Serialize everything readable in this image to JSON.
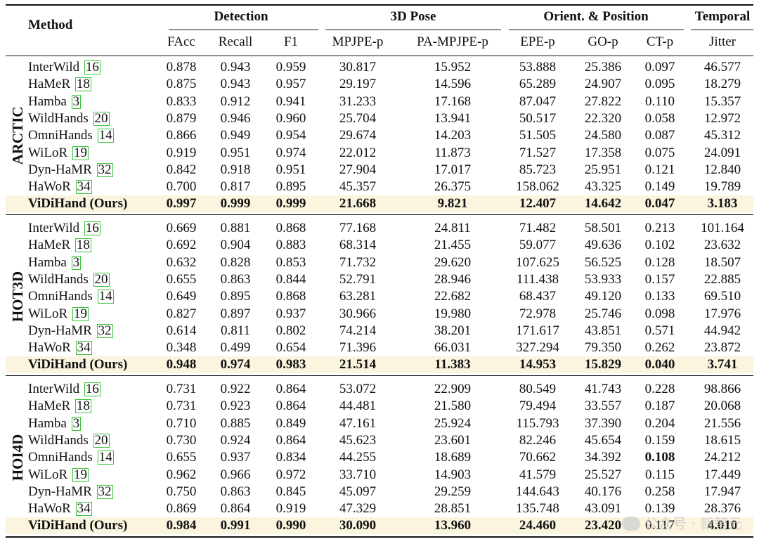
{
  "header": {
    "method_label": "Method",
    "groups": [
      {
        "label": "Detection",
        "span": [
          0,
          2
        ]
      },
      {
        "label": "3D Pose",
        "span": [
          3,
          4
        ]
      },
      {
        "label": "Orient. & Position",
        "span": [
          5,
          7
        ]
      },
      {
        "label": "Temporal",
        "span": [
          8,
          8
        ]
      }
    ],
    "columns": [
      "FAcc",
      "Recall",
      "F1",
      "MPJPE-p",
      "PA-MPJPE-p",
      "EPE-p",
      "GO-p",
      "CT-p",
      "Jitter"
    ]
  },
  "sections": [
    {
      "dataset": "ARCTIC",
      "rows": [
        {
          "method": "InterWild",
          "cite": "16",
          "values": [
            "0.878",
            "0.943",
            "0.959",
            "30.817",
            "15.952",
            "53.888",
            "25.386",
            "0.097",
            "46.577"
          ]
        },
        {
          "method": "HaMeR",
          "cite": "18",
          "values": [
            "0.875",
            "0.943",
            "0.957",
            "29.197",
            "14.596",
            "65.289",
            "24.907",
            "0.095",
            "18.279"
          ]
        },
        {
          "method": "Hamba",
          "cite": "3",
          "values": [
            "0.833",
            "0.912",
            "0.941",
            "31.233",
            "17.168",
            "87.047",
            "27.822",
            "0.110",
            "15.357"
          ]
        },
        {
          "method": "WildHands",
          "cite": "20",
          "values": [
            "0.879",
            "0.946",
            "0.960",
            "25.704",
            "13.941",
            "50.517",
            "22.320",
            "0.058",
            "12.972"
          ]
        },
        {
          "method": "OmniHands",
          "cite": "14",
          "values": [
            "0.866",
            "0.949",
            "0.954",
            "29.674",
            "14.203",
            "51.505",
            "24.580",
            "0.087",
            "45.312"
          ]
        },
        {
          "method": "WiLoR",
          "cite": "19",
          "values": [
            "0.919",
            "0.951",
            "0.974",
            "22.012",
            "11.873",
            "71.527",
            "17.358",
            "0.075",
            "24.091"
          ]
        },
        {
          "method": "Dyn-HaMR",
          "cite": "32",
          "values": [
            "0.842",
            "0.918",
            "0.951",
            "27.904",
            "17.017",
            "85.723",
            "25.951",
            "0.121",
            "12.840"
          ]
        },
        {
          "method": "HaWoR",
          "cite": "34",
          "values": [
            "0.700",
            "0.817",
            "0.895",
            "45.357",
            "26.375",
            "158.062",
            "43.325",
            "0.149",
            "19.789"
          ]
        },
        {
          "method": "ViDiHand (Ours)",
          "cite": "",
          "ours": true,
          "values": [
            "0.997",
            "0.999",
            "0.999",
            "21.668",
            "9.821",
            "12.407",
            "14.642",
            "0.047",
            "3.183"
          ]
        }
      ]
    },
    {
      "dataset": "HOT3D",
      "rows": [
        {
          "method": "InterWild",
          "cite": "16",
          "values": [
            "0.669",
            "0.881",
            "0.868",
            "77.168",
            "24.811",
            "71.482",
            "58.501",
            "0.213",
            "101.164"
          ]
        },
        {
          "method": "HaMeR",
          "cite": "18",
          "values": [
            "0.692",
            "0.904",
            "0.883",
            "68.314",
            "21.455",
            "59.077",
            "49.636",
            "0.102",
            "23.632"
          ]
        },
        {
          "method": "Hamba",
          "cite": "3",
          "values": [
            "0.632",
            "0.828",
            "0.853",
            "71.732",
            "29.620",
            "107.625",
            "56.525",
            "0.128",
            "18.507"
          ]
        },
        {
          "method": "WildHands",
          "cite": "20",
          "values": [
            "0.655",
            "0.863",
            "0.844",
            "52.791",
            "28.946",
            "111.438",
            "53.933",
            "0.157",
            "22.885"
          ]
        },
        {
          "method": "OmniHands",
          "cite": "14",
          "values": [
            "0.649",
            "0.895",
            "0.868",
            "63.281",
            "22.682",
            "68.437",
            "49.120",
            "0.133",
            "69.510"
          ]
        },
        {
          "method": "WiLoR",
          "cite": "19",
          "values": [
            "0.827",
            "0.897",
            "0.937",
            "30.966",
            "19.980",
            "72.978",
            "25.746",
            "0.098",
            "17.976"
          ]
        },
        {
          "method": "Dyn-HaMR",
          "cite": "32",
          "values": [
            "0.614",
            "0.811",
            "0.802",
            "74.214",
            "38.201",
            "171.617",
            "43.851",
            "0.571",
            "44.942"
          ]
        },
        {
          "method": "HaWoR",
          "cite": "34",
          "values": [
            "0.348",
            "0.499",
            "0.654",
            "71.396",
            "66.031",
            "327.294",
            "79.350",
            "0.262",
            "23.872"
          ]
        },
        {
          "method": "ViDiHand (Ours)",
          "cite": "",
          "ours": true,
          "values": [
            "0.948",
            "0.974",
            "0.983",
            "21.514",
            "11.383",
            "14.953",
            "15.829",
            "0.040",
            "3.741"
          ]
        }
      ]
    },
    {
      "dataset": "HOI4D",
      "rows": [
        {
          "method": "InterWild",
          "cite": "16",
          "values": [
            "0.731",
            "0.922",
            "0.864",
            "53.072",
            "22.909",
            "80.549",
            "41.743",
            "0.228",
            "98.866"
          ]
        },
        {
          "method": "HaMeR",
          "cite": "18",
          "values": [
            "0.731",
            "0.923",
            "0.864",
            "44.481",
            "21.580",
            "79.494",
            "33.557",
            "0.187",
            "20.068"
          ]
        },
        {
          "method": "Hamba",
          "cite": "3",
          "values": [
            "0.710",
            "0.885",
            "0.849",
            "47.161",
            "25.924",
            "115.793",
            "37.390",
            "0.204",
            "21.556"
          ]
        },
        {
          "method": "WildHands",
          "cite": "20",
          "values": [
            "0.730",
            "0.924",
            "0.864",
            "45.623",
            "23.601",
            "82.246",
            "45.654",
            "0.159",
            "18.615"
          ]
        },
        {
          "method": "OmniHands",
          "cite": "14",
          "values": [
            "0.655",
            "0.937",
            "0.834",
            "44.255",
            "18.689",
            "70.662",
            "34.392",
            "0.108",
            "24.212"
          ],
          "bold_cols": [
            7
          ]
        },
        {
          "method": "WiLoR",
          "cite": "19",
          "values": [
            "0.962",
            "0.966",
            "0.972",
            "33.710",
            "14.903",
            "41.579",
            "25.527",
            "0.115",
            "17.449"
          ]
        },
        {
          "method": "Dyn-HaMR",
          "cite": "32",
          "values": [
            "0.750",
            "0.863",
            "0.845",
            "45.097",
            "29.259",
            "144.643",
            "40.176",
            "0.258",
            "17.947"
          ]
        },
        {
          "method": "HaWoR",
          "cite": "34",
          "values": [
            "0.869",
            "0.864",
            "0.919",
            "47.329",
            "28.851",
            "135.748",
            "43.091",
            "0.139",
            "28.376"
          ]
        },
        {
          "method": "ViDiHand (Ours)",
          "cite": "",
          "ours": true,
          "values": [
            "0.984",
            "0.991",
            "0.990",
            "30.090",
            "13.960",
            "24.460",
            "23.420",
            "0.117",
            "4.010"
          ],
          "bold_cols": [
            0,
            1,
            2,
            3,
            4,
            5,
            6,
            8
          ]
        }
      ]
    }
  ],
  "watermark": "公众号 · 新智元",
  "colors": {
    "highlight": "#fbf4df",
    "cite_border": "#36c536"
  }
}
